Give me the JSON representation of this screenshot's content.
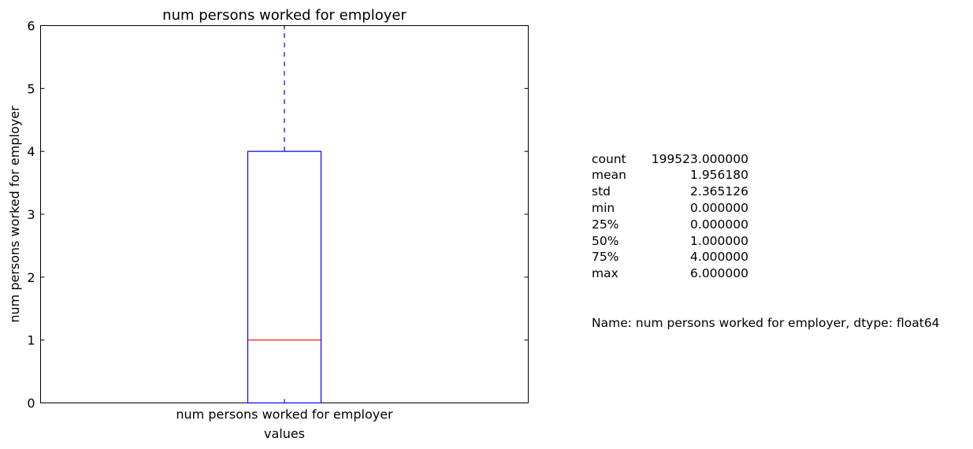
{
  "chart_data": {
    "type": "box",
    "title": "num persons worked for employer",
    "xlabel": "values",
    "ylabel": "num persons worked for employer",
    "categories": [
      "num persons worked for employer"
    ],
    "ylim": [
      0,
      6
    ],
    "yticks": [
      "0",
      "1",
      "2",
      "3",
      "4",
      "5",
      "6"
    ],
    "boxes": [
      {
        "category": "num persons worked for employer",
        "whisker_low": 0,
        "q1": 0,
        "median": 1,
        "q3": 4,
        "whisker_high": 6
      }
    ],
    "colors": {
      "box": "#0000ff",
      "median": "#ff0000",
      "whisker": "#0000ff"
    },
    "grid": false
  },
  "stats": {
    "rows": [
      {
        "key": "count",
        "value": "199523.000000"
      },
      {
        "key": "mean",
        "value": "1.956180"
      },
      {
        "key": "std",
        "value": "2.365126"
      },
      {
        "key": "min",
        "value": "0.000000"
      },
      {
        "key": "25%",
        "value": "0.000000"
      },
      {
        "key": "50%",
        "value": "1.000000"
      },
      {
        "key": "75%",
        "value": "4.000000"
      },
      {
        "key": "max",
        "value": "6.000000"
      }
    ],
    "footer": "Name: num persons worked for employer, dtype: float64"
  }
}
